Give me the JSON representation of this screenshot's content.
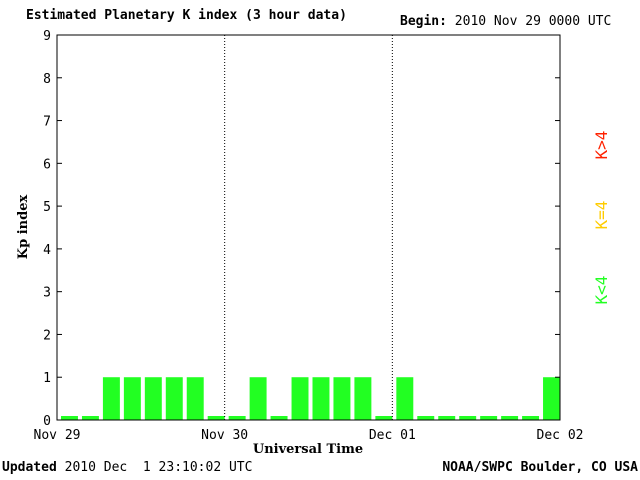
{
  "header": {
    "title": "Estimated Planetary K index (3 hour data)",
    "begin_label": "Begin:",
    "begin_value": "2010 Nov 29 0000 UTC"
  },
  "footer": {
    "updated_label": "Updated",
    "updated_value": "2010 Dec  1 23:10:02 UTC",
    "credit": "NOAA/SWPC Boulder, CO USA"
  },
  "legend": [
    {
      "label": "K>4",
      "color": "#ff2200"
    },
    {
      "label": "K=4",
      "color": "#ffcc00"
    },
    {
      "label": "K<4",
      "color": "#22ff22"
    }
  ],
  "chart_data": {
    "type": "bar",
    "title": "Estimated Planetary K index (3 hour data)",
    "xlabel": "Universal Time",
    "ylabel": "Kp index",
    "ylim": [
      0,
      9
    ],
    "yticks": [
      "0",
      "1",
      "2",
      "3",
      "4",
      "5",
      "6",
      "7",
      "8",
      "9"
    ],
    "xticks": [
      "Nov 29",
      "Nov 30",
      "Dec 01",
      "Dec 02"
    ],
    "bar_color": "#22ff22",
    "values": [
      0,
      0,
      1,
      1,
      1,
      1,
      1,
      0,
      0,
      1,
      0,
      1,
      1,
      1,
      1,
      0,
      1,
      0,
      0,
      0,
      0,
      0,
      0,
      1
    ]
  }
}
